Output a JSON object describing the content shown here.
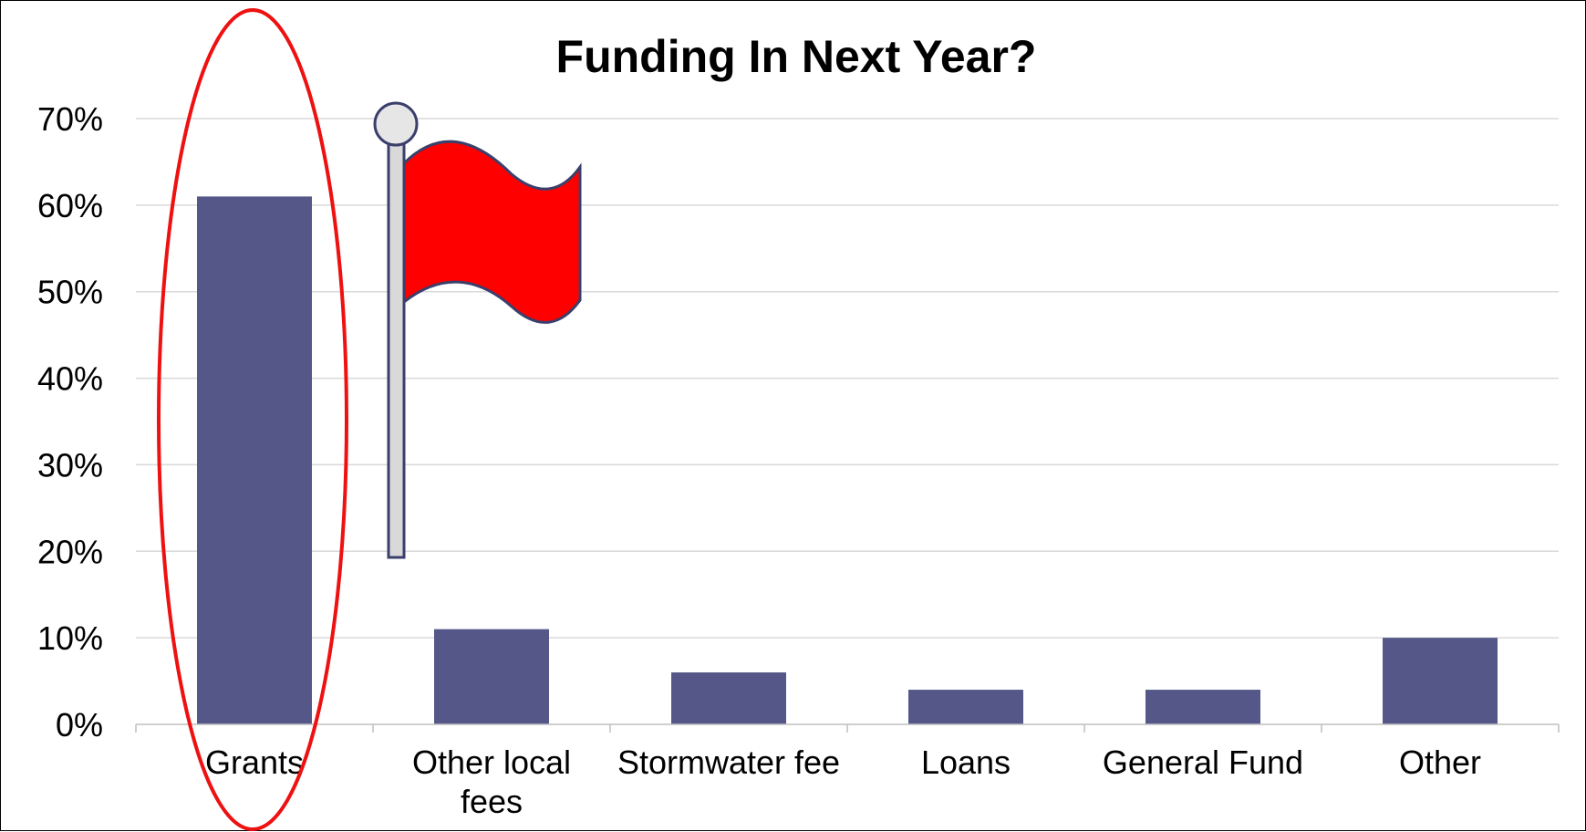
{
  "chart_data": {
    "type": "bar",
    "title": "Funding In Next Year?",
    "xlabel": "",
    "ylabel": "",
    "categories": [
      [
        "Grants"
      ],
      [
        "Other local",
        "fees"
      ],
      [
        "Stormwater fee"
      ],
      [
        "Loans"
      ],
      [
        "General Fund"
      ],
      [
        "Other"
      ]
    ],
    "values": [
      61,
      11,
      6,
      4,
      4,
      10
    ],
    "ylim": [
      0,
      70
    ],
    "yticks": [
      "0%",
      "10%",
      "20%",
      "30%",
      "40%",
      "50%",
      "60%",
      "70%"
    ],
    "grid": true,
    "legend": "none",
    "colors": {
      "bar": "#545788",
      "grid": "#d9d9d9",
      "axis": "#bfbfbf",
      "highlight": "#ee1111",
      "flag": "#ff0000",
      "pole": "#d9d9d9",
      "outline": "#3a3f6b"
    }
  },
  "annotations": {
    "highlight": "ellipse around Grants",
    "flag": "red-flag-icon"
  }
}
